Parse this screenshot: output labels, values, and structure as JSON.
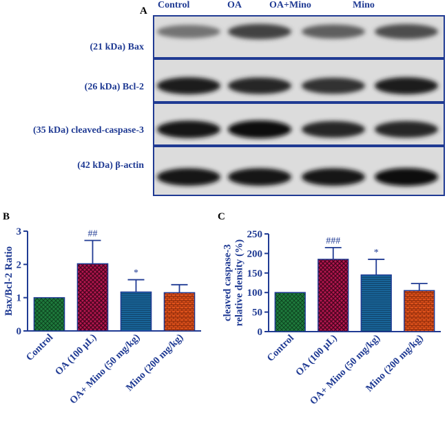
{
  "panel_a": {
    "letter": "A",
    "lanes": [
      "Control",
      "OA",
      "OA+Mino",
      "Mino"
    ],
    "bands": [
      {
        "label": "(21 kDa) Bax",
        "intensity": [
          0.45,
          0.7,
          0.55,
          0.65
        ]
      },
      {
        "label": "(26 kDa) Bcl-2",
        "intensity": [
          0.9,
          0.85,
          0.8,
          0.9
        ]
      },
      {
        "label": "(35 kDa) cleaved-caspase-3",
        "intensity": [
          0.95,
          1.0,
          0.85,
          0.85
        ]
      },
      {
        "label": "(42 kDa) β-actin",
        "intensity": [
          0.95,
          0.95,
          0.95,
          1.0
        ]
      }
    ]
  },
  "chart_data": [
    {
      "letter": "B",
      "type": "bar",
      "categories": [
        "Control",
        "OA (100 µL)",
        "OA+ Mino (50 mg/kg)",
        "Mino (200 mg/kg)"
      ],
      "values": [
        1.0,
        2.02,
        1.17,
        1.15
      ],
      "errors": [
        0,
        0.7,
        0.37,
        0.24
      ],
      "annotations": [
        "",
        "##",
        "*",
        ""
      ],
      "ylabel": "Bax/Bcl-2 Ratio",
      "ylim": [
        0,
        3
      ],
      "yticks": [
        0,
        1,
        2,
        3
      ],
      "colors": [
        "#1e7a3c",
        "#b5174f",
        "#1b6fa8",
        "#e0521c"
      ]
    },
    {
      "letter": "C",
      "type": "bar",
      "categories": [
        "Control",
        "OA (100 µL)",
        "OA+ Mino (50 mg/kg)",
        "Mino (200 mg/kg)"
      ],
      "values": [
        100,
        185,
        145,
        105
      ],
      "errors": [
        0,
        30,
        40,
        18
      ],
      "annotations": [
        "",
        "###",
        "*",
        ""
      ],
      "ylabel": "cleaved caspase-3 relative density (%)",
      "ylabel_lines": [
        "cleaved caspase-3",
        "relative density (%)"
      ],
      "ylim": [
        0,
        250
      ],
      "yticks": [
        0,
        50,
        100,
        150,
        200,
        250
      ],
      "colors": [
        "#1e7a3c",
        "#b5174f",
        "#1b6fa8",
        "#e0521c"
      ]
    }
  ]
}
